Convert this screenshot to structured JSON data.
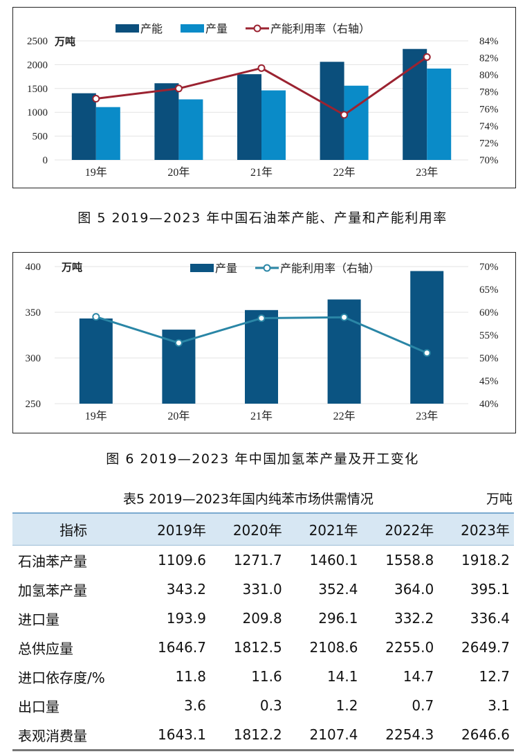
{
  "chart_data": [
    {
      "type": "bar",
      "categories": [
        "19年",
        "20年",
        "21年",
        "22年",
        "23年"
      ],
      "ylabel": "万吨",
      "ylim": [
        0,
        2500
      ],
      "yticks": [
        "0",
        "500",
        "1000",
        "1500",
        "2000",
        "2500"
      ],
      "y2lim": [
        70,
        84
      ],
      "y2ticks": [
        "70%",
        "72%",
        "74%",
        "76%",
        "78%",
        "80%",
        "82%",
        "84%"
      ],
      "series": [
        {
          "name": "产能",
          "kind": "bar",
          "axis": "left",
          "color": "#0b4f7c",
          "values": [
            1400,
            1610,
            1800,
            2060,
            2330
          ]
        },
        {
          "name": "产量",
          "kind": "bar",
          "axis": "left",
          "color": "#0a8bc8",
          "values": [
            1109.6,
            1271.7,
            1460.1,
            1558.8,
            1918.2
          ]
        },
        {
          "name": "产能利用率（右轴）",
          "kind": "line",
          "axis": "right",
          "color": "#9b2331",
          "values": [
            77.2,
            78.4,
            80.8,
            75.3,
            82.1
          ]
        }
      ],
      "legend_position": "top-center"
    },
    {
      "type": "bar",
      "categories": [
        "19年",
        "20年",
        "21年",
        "22年",
        "23年"
      ],
      "ylabel": "万吨",
      "ylim": [
        250,
        400
      ],
      "yticks": [
        "250",
        "300",
        "350",
        "400"
      ],
      "y2lim": [
        40,
        70
      ],
      "y2ticks": [
        "40%",
        "45%",
        "50%",
        "55%",
        "60%",
        "65%",
        "70%"
      ],
      "series": [
        {
          "name": "产量",
          "kind": "bar",
          "axis": "left",
          "color": "#0b5482",
          "values": [
            343.2,
            331.0,
            352.4,
            364.0,
            395.1
          ]
        },
        {
          "name": "产能利用率（右轴）",
          "kind": "line",
          "axis": "right",
          "color": "#2a86a6",
          "values": [
            59.0,
            53.3,
            58.7,
            58.9,
            51.1
          ]
        }
      ],
      "legend_position": "top-center"
    }
  ],
  "captions": {
    "fig5": "图 5  2019—2023 年中国石油苯产能、产量和产能利用率",
    "fig6": "图 6  2019—2023 年中国加氢苯产量及开工变化"
  },
  "table": {
    "title": "表5  2019—2023年国内纯苯市场供需情况",
    "unit": "万吨",
    "headers": [
      "指标",
      "2019年",
      "2020年",
      "2021年",
      "2022年",
      "2023年"
    ],
    "rows": [
      [
        "石油苯产量",
        "1109.6",
        "1271.7",
        "1460.1",
        "1558.8",
        "1918.2"
      ],
      [
        "加氢苯产量",
        "343.2",
        "331.0",
        "352.4",
        "364.0",
        "395.1"
      ],
      [
        "进口量",
        "193.9",
        "209.8",
        "296.1",
        "332.2",
        "336.4"
      ],
      [
        "总供应量",
        "1646.7",
        "1812.5",
        "2108.6",
        "2255.0",
        "2649.7"
      ],
      [
        "进口依存度/%",
        "11.8",
        "11.6",
        "14.1",
        "14.7",
        "12.7"
      ],
      [
        "出口量",
        "3.6",
        "0.3",
        "1.2",
        "0.7",
        "3.1"
      ],
      [
        "表观消费量",
        "1643.1",
        "1812.2",
        "2107.4",
        "2254.3",
        "2646.6"
      ]
    ]
  }
}
